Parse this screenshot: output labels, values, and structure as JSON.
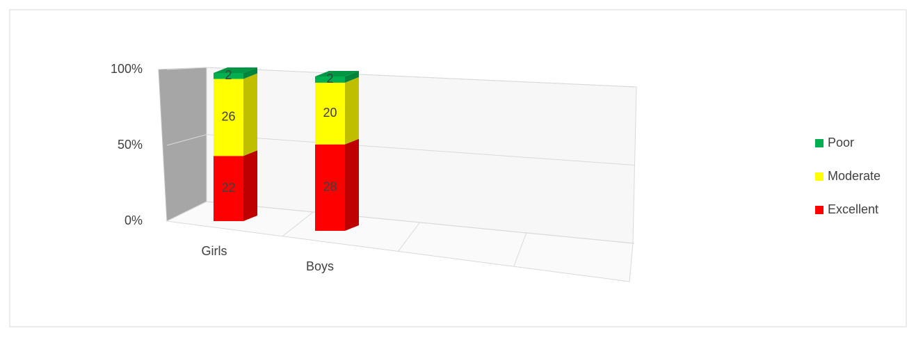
{
  "chart_data": {
    "type": "bar3d_stacked_percent",
    "categories": [
      "Girls",
      "Boys",
      null,
      null
    ],
    "series": [
      {
        "name": "Excellent",
        "color": "#ff0000",
        "values": [
          22,
          28,
          null,
          null
        ]
      },
      {
        "name": "Moderate",
        "color": "#ffff00",
        "values": [
          26,
          20,
          null,
          null
        ]
      },
      {
        "name": "Poor",
        "color": "#00b050",
        "values": [
          2,
          2,
          null,
          null
        ]
      }
    ],
    "ylim": [
      0,
      100
    ],
    "yticks": [
      {
        "value": 0,
        "label": "0%"
      },
      {
        "value": 50,
        "label": "50%"
      },
      {
        "value": 100,
        "label": "100%"
      }
    ],
    "grid": true,
    "legend": "right"
  }
}
